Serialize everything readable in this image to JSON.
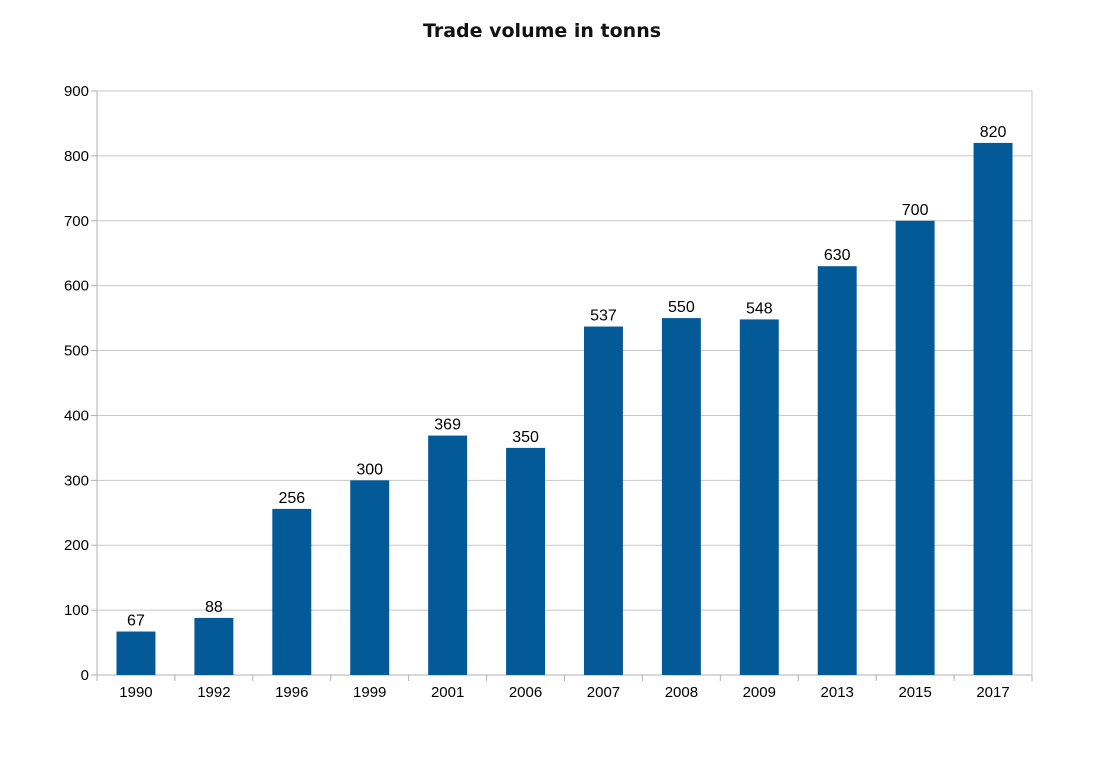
{
  "chart_data": {
    "type": "bar",
    "title": "Trade volume in tonns",
    "xlabel": "",
    "ylabel": "",
    "categories": [
      "1990",
      "1992",
      "1996",
      "1999",
      "2001",
      "2006",
      "2007",
      "2008",
      "2009",
      "2013",
      "2015",
      "2017"
    ],
    "values": [
      67,
      88,
      256,
      300,
      369,
      350,
      537,
      550,
      548,
      630,
      700,
      820
    ],
    "ylim": [
      0,
      900
    ],
    "yticks": [
      0,
      100,
      200,
      300,
      400,
      500,
      600,
      700,
      800,
      900
    ],
    "grid": true,
    "legend": "none",
    "data_labels": true,
    "bar_color": "#045a96"
  }
}
